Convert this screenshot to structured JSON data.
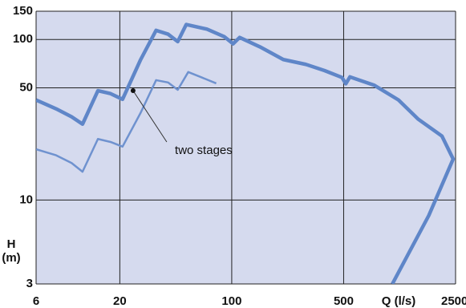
{
  "chart_data": {
    "type": "line",
    "x_label": "Q (l/s)",
    "y_label": "H",
    "y_unit": "(m)",
    "log_x": true,
    "log_y": true,
    "grid": true,
    "xlim": [
      6,
      2500
    ],
    "ylim": [
      3,
      150
    ],
    "xticks": [
      6,
      20,
      100,
      500,
      2500
    ],
    "yticks": [
      3,
      10,
      50,
      100,
      150
    ],
    "series": [
      {
        "color": "#5f86c8",
        "x": [
          6,
          8,
          10,
          11.7,
          14.6,
          17.5,
          20.8,
          27,
          33.7,
          40,
          46,
          52,
          70,
          90,
          102,
          112,
          150,
          210,
          290,
          380,
          488,
          516,
          547,
          773,
          1100,
          1455,
          2056,
          2415,
          1700,
          1007
        ],
        "values": [
          42,
          37,
          33,
          29.7,
          48,
          46,
          42.4,
          75,
          114,
          108,
          97,
          124,
          116,
          104,
          94,
          103,
          90,
          75,
          70,
          64,
          58,
          53,
          58.5,
          52,
          42,
          32,
          25,
          18,
          8,
          3
        ]
      },
      {
        "color": "#6f92cf",
        "x": [
          6,
          8,
          10,
          11.7,
          14.6,
          17.5,
          20.8,
          27,
          33.7,
          40,
          46,
          53.5,
          65,
          80
        ],
        "values": [
          20.7,
          19,
          17,
          15,
          24,
          23,
          21.5,
          35,
          55.8,
          54,
          48.6,
          62.7,
          58,
          53.3
        ]
      }
    ],
    "annotation": {
      "text": "two stages",
      "x": 24.2,
      "y": 48
    }
  }
}
